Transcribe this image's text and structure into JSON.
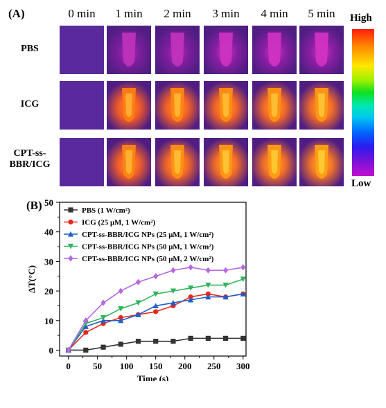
{
  "panel_a": {
    "label": "(A)",
    "columns": [
      "0 min",
      "1 min",
      "2 min",
      "3 min",
      "4 min",
      "5 min"
    ],
    "rows": [
      "PBS",
      "ICG",
      "CPT-ss-\nBBR/ICG"
    ],
    "intensity": [
      [
        0.0,
        0.28,
        0.3,
        0.38,
        0.4,
        0.42
      ],
      [
        0.0,
        0.62,
        0.7,
        0.76,
        0.8,
        0.84
      ],
      [
        0.0,
        0.68,
        0.78,
        0.84,
        0.88,
        0.92
      ]
    ],
    "scale_high": "High",
    "scale_low": "Low"
  },
  "panel_b": {
    "label": "(B)"
  },
  "chart_data": {
    "type": "line",
    "xlabel": "Time (s)",
    "ylabel": "ΔT(°C)",
    "xlim": [
      -15,
      305
    ],
    "ylim": [
      -2,
      50
    ],
    "xticks": [
      0,
      50,
      100,
      150,
      200,
      250,
      300
    ],
    "yticks": [
      0,
      10,
      20,
      30,
      40,
      50
    ],
    "x": [
      0,
      30,
      60,
      90,
      120,
      150,
      180,
      210,
      240,
      270,
      300
    ],
    "legend_position": "top-left",
    "series": [
      {
        "name": "PBS (1 W/cm²)",
        "color": "#333333",
        "marker": "square",
        "values": [
          0,
          0,
          1,
          2,
          3,
          3,
          3,
          4,
          4,
          4,
          4
        ]
      },
      {
        "name": "ICG (25 μM, 1 W/cm²)",
        "color": "#e8271c",
        "marker": "circle",
        "values": [
          0,
          6,
          9,
          11,
          12,
          13,
          15,
          18,
          19,
          18,
          19
        ]
      },
      {
        "name": "CPT-ss-BBR/ICG NPs (25 μM, 1 W/cm²)",
        "color": "#1f5fc8",
        "marker": "triangle-up",
        "values": [
          0,
          8,
          10,
          10,
          12,
          15,
          16,
          17,
          18,
          18,
          19
        ]
      },
      {
        "name": "CPT-ss-BBR/ICG NPs (50 μM, 1 W/cm²)",
        "color": "#2fb35a",
        "marker": "triangle-down",
        "values": [
          0,
          9,
          11,
          14,
          16,
          19,
          20,
          21,
          22,
          22,
          24
        ]
      },
      {
        "name": "CPT-ss-BBR/ICG NPs (50 μM, 2 W/cm²)",
        "color": "#b36ae0",
        "marker": "diamond",
        "values": [
          0,
          10,
          16,
          20,
          23,
          25,
          27,
          28,
          27,
          27,
          28
        ]
      }
    ]
  }
}
